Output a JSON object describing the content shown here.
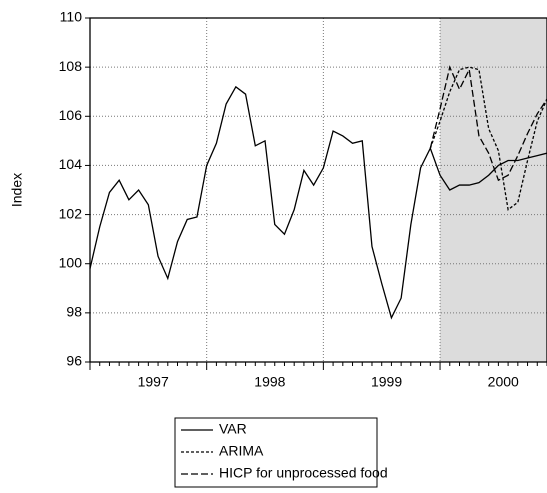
{
  "chart_data": {
    "type": "line",
    "y_label": "Index",
    "categories": [
      null,
      null,
      null,
      null,
      null,
      null,
      "1997",
      null,
      null,
      null,
      null,
      null,
      null,
      null,
      null,
      null,
      null,
      null,
      "1998",
      null,
      null,
      null,
      null,
      null,
      null,
      null,
      null,
      null,
      null,
      null,
      "1999",
      null,
      null,
      null,
      null,
      null,
      null,
      null,
      null,
      null,
      null,
      null,
      "2000",
      null,
      null,
      null,
      null,
      null
    ],
    "series": [
      {
        "name": "VAR",
        "color": "#000000",
        "dash": "none",
        "values": [
          99.8,
          101.5,
          102.9,
          103.4,
          102.6,
          103.0,
          102.4,
          100.3,
          99.4,
          100.9,
          101.8,
          101.9,
          104.0,
          104.9,
          106.5,
          107.2,
          106.9,
          104.8,
          105.0,
          101.6,
          101.2,
          102.2,
          103.8,
          103.2,
          103.9,
          105.4,
          105.2,
          104.9,
          105.0,
          100.7,
          99.2,
          97.8,
          98.6,
          101.6,
          103.9,
          104.7,
          103.6,
          103.0,
          103.2,
          103.2,
          103.3,
          103.6,
          104.0,
          104.2,
          104.2,
          104.3,
          104.4,
          104.5
        ]
      },
      {
        "name": "ARIMA",
        "color": "#000000",
        "dash": "3,2",
        "values": [
          null,
          null,
          null,
          null,
          null,
          null,
          null,
          null,
          null,
          null,
          null,
          null,
          null,
          null,
          null,
          null,
          null,
          null,
          null,
          null,
          null,
          null,
          null,
          null,
          null,
          null,
          null,
          null,
          null,
          null,
          null,
          null,
          null,
          null,
          null,
          104.7,
          105.8,
          107.0,
          107.9,
          108.0,
          107.9,
          105.5,
          104.6,
          102.2,
          102.5,
          104.2,
          105.8,
          106.7
        ]
      },
      {
        "name": "HICP for unprocessed food",
        "color": "#000000",
        "dash": "7,3",
        "values": [
          null,
          null,
          null,
          null,
          null,
          null,
          null,
          null,
          null,
          null,
          null,
          null,
          null,
          null,
          null,
          null,
          null,
          null,
          null,
          null,
          null,
          null,
          null,
          null,
          null,
          null,
          null,
          null,
          null,
          null,
          null,
          null,
          null,
          null,
          null,
          104.7,
          106.3,
          108.0,
          107.1,
          107.9,
          105.2,
          104.5,
          103.4,
          103.6,
          104.4,
          105.3,
          106.1,
          106.7
        ]
      }
    ],
    "ylim": [
      96,
      110
    ],
    "yticks": [
      96,
      98,
      100,
      102,
      104,
      106,
      108,
      110
    ],
    "grid": true,
    "shade_color": "#dcdcdc",
    "shade_from_index": 36,
    "legend": "bottom"
  }
}
